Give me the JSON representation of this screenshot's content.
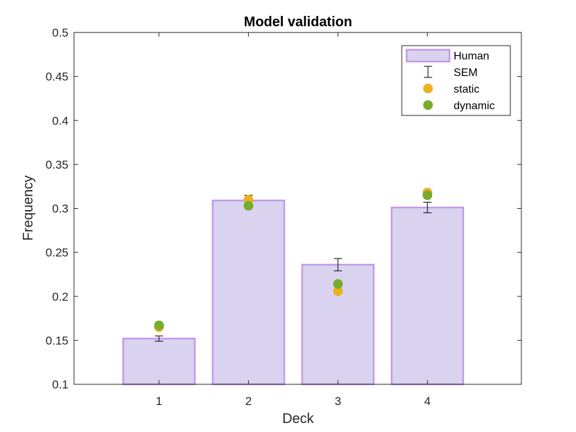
{
  "chart_data": {
    "type": "bar",
    "title": "Model validation",
    "xlabel": "Deck",
    "ylabel": "Frequency",
    "categories": [
      "1",
      "2",
      "3",
      "4"
    ],
    "xlim": [
      0.05,
      5.05
    ],
    "ylim": [
      0.1,
      0.5
    ],
    "yticks": [
      "0.1",
      "0.15",
      "0.2",
      "0.25",
      "0.3",
      "0.35",
      "0.4",
      "0.45",
      "0.5"
    ],
    "grid": false,
    "legend_position": "top-right",
    "series": [
      {
        "name": "Human",
        "kind": "bar",
        "values": [
          0.152,
          0.309,
          0.236,
          0.301
        ],
        "fill": "#d9d3f0",
        "edge": "#c39be8"
      },
      {
        "name": "SEM",
        "kind": "errorbar",
        "errors": [
          0.003,
          0.006,
          0.007,
          0.006
        ],
        "color": "#000000"
      },
      {
        "name": "static",
        "kind": "marker",
        "values": [
          0.165,
          0.31,
          0.206,
          0.318
        ],
        "color": "#edb120"
      },
      {
        "name": "dynamic",
        "kind": "marker",
        "values": [
          0.167,
          0.303,
          0.214,
          0.315
        ],
        "color": "#77ac30"
      }
    ]
  }
}
